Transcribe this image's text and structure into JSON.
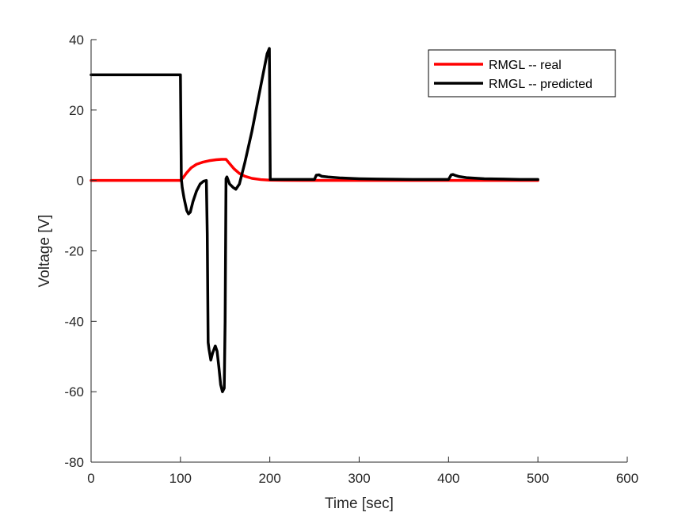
{
  "chart_data": {
    "type": "line",
    "title": "",
    "xlabel": "Time [sec]",
    "ylabel": "Voltage [V]",
    "xlim": [
      0,
      600
    ],
    "ylim": [
      -80,
      40
    ],
    "xticks": [
      0,
      100,
      200,
      300,
      400,
      500,
      600
    ],
    "yticks": [
      -80,
      -60,
      -40,
      -20,
      0,
      20,
      40
    ],
    "xtick_labels": [
      "0",
      "100",
      "200",
      "300",
      "400",
      "500",
      "600"
    ],
    "ytick_labels": [
      "-80",
      "-60",
      "-40",
      "-20",
      "0",
      "20",
      "40"
    ],
    "grid": false,
    "legend_position": "top-right",
    "series": [
      {
        "name": "RMGL -- real",
        "color": "#ff0000",
        "x": [
          0,
          100,
          103,
          107,
          112,
          118,
          125,
          132,
          140,
          146,
          151,
          155,
          160,
          166,
          172,
          180,
          190,
          200,
          215,
          250,
          300,
          400,
          500
        ],
        "y": [
          0,
          0,
          0.8,
          2.2,
          3.6,
          4.6,
          5.2,
          5.6,
          5.9,
          6.0,
          6.0,
          4.8,
          3.3,
          2.0,
          1.2,
          0.6,
          0.25,
          0.1,
          0.03,
          0,
          0,
          0,
          0
        ]
      },
      {
        "name": "RMGL -- predicted",
        "color": "#000000",
        "x": [
          0,
          100,
          101,
          102,
          104,
          107,
          109,
          111,
          114,
          118,
          122,
          126,
          129,
          130,
          131,
          132,
          134,
          136,
          139,
          141,
          143,
          145,
          147,
          149,
          150,
          151,
          152,
          155,
          159,
          162,
          166,
          172,
          180,
          190,
          197,
          199.5,
          200.5,
          210,
          230,
          250,
          252,
          255,
          258,
          265,
          280,
          300,
          320,
          340,
          360,
          380,
          400,
          403,
          405,
          408,
          412,
          420,
          440,
          460,
          480,
          500
        ],
        "y": [
          30,
          30,
          0.5,
          -2,
          -5,
          -8.5,
          -9.5,
          -9,
          -6,
          -3,
          -1,
          -0.2,
          0,
          -15,
          -46,
          -48,
          -51,
          -49,
          -47,
          -48.5,
          -53,
          -58,
          -60,
          -59,
          -40,
          0.5,
          1.0,
          -1,
          -2,
          -2.5,
          -1,
          5,
          14,
          27,
          36,
          37.5,
          0.3,
          0.3,
          0.3,
          0.3,
          1.5,
          1.6,
          1.2,
          1.0,
          0.7,
          0.5,
          0.4,
          0.35,
          0.3,
          0.3,
          0.3,
          1.6,
          1.7,
          1.4,
          1.1,
          0.8,
          0.5,
          0.4,
          0.3,
          0.3
        ]
      }
    ]
  }
}
